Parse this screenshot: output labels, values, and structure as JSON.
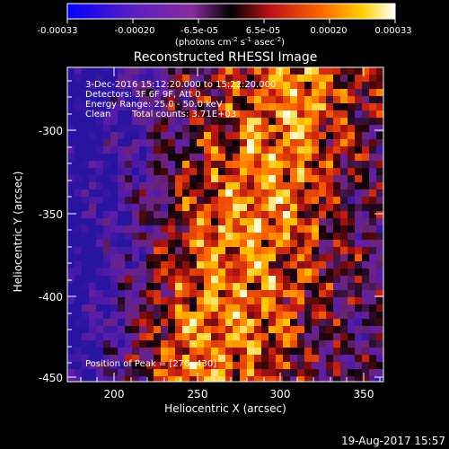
{
  "colorbar": {
    "tick_labels": [
      "-0.00033",
      "-0.00020",
      "-6.5e-05",
      "6.5e-05",
      "0.00020",
      "0.00033"
    ],
    "unit_prefix": "(photons cm",
    "unit_sup1": "-2",
    "unit_mid1": " s",
    "unit_sup2": "-1",
    "unit_mid2": " asec",
    "unit_sup3": "-2",
    "unit_suffix": ")"
  },
  "title": "Reconstructed RHESSI Image",
  "info": {
    "time_range": "3-Dec-2016 15:12:20.000 to 15:22:20.000",
    "detectors": "Detectors: 3F 6F 9F, Att 0",
    "energy": "Energy Range: 25.0 - 50.0 keV",
    "method": "Clean",
    "counts": "Total counts: 3.71E+03",
    "peak": "Position of Peak = [276,-430]"
  },
  "axes": {
    "xlabel": "Heliocentric X (arcsec)",
    "ylabel": "Heliocentric Y (arcsec)",
    "x_ticks": [
      "200",
      "250",
      "300",
      "350"
    ],
    "y_ticks": [
      "-300",
      "-350",
      "-400",
      "-450"
    ]
  },
  "footer": {
    "timestamp": "19-Aug-2017 15:57"
  }
}
